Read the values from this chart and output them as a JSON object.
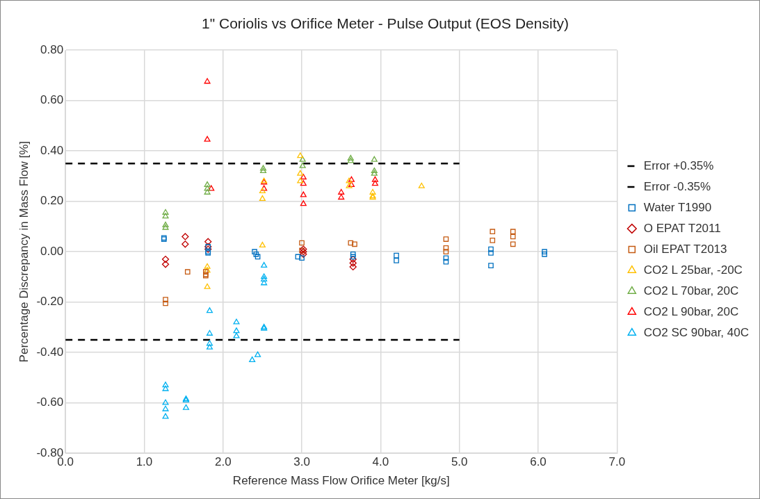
{
  "chart_data": {
    "type": "scatter",
    "title": "1\" Coriolis vs Orifice Meter - Pulse Output (EOS Density)",
    "xlabel": "Reference Mass Flow Orifice Meter [kg/s]",
    "ylabel": "Percentage Discrepancy in Mass Flow [%]",
    "xlim": [
      0,
      7
    ],
    "xticks": [
      {
        "value": 0,
        "label": "0.0"
      },
      {
        "value": 1,
        "label": "1.0"
      },
      {
        "value": 2,
        "label": "2.0"
      },
      {
        "value": 3,
        "label": "3.0"
      },
      {
        "value": 4,
        "label": "4.0"
      },
      {
        "value": 5,
        "label": "5.0"
      },
      {
        "value": 6,
        "label": "6.0"
      },
      {
        "value": 7,
        "label": "7.0"
      }
    ],
    "ylim": [
      -0.8,
      0.8
    ],
    "yticks": [
      {
        "value": -0.8,
        "label": "-0.80"
      },
      {
        "value": -0.6,
        "label": "-0.60"
      },
      {
        "value": -0.4,
        "label": "-0.40"
      },
      {
        "value": -0.2,
        "label": "-0.20"
      },
      {
        "value": 0,
        "label": "0.00"
      },
      {
        "value": 0.2,
        "label": "0.20"
      },
      {
        "value": 0.4,
        "label": "0.40"
      },
      {
        "value": 0.6,
        "label": "0.60"
      },
      {
        "value": 0.8,
        "label": "0.80"
      }
    ],
    "grid": true,
    "legend": "right",
    "series": [
      {
        "name": "Error +0.35%",
        "type": "line",
        "color": "#000000",
        "line_style": "dashed",
        "marker": "none",
        "x": [
          0,
          5
        ],
        "values": [
          0.35,
          0.35
        ]
      },
      {
        "name": "Error -0.35%",
        "type": "line",
        "color": "#000000",
        "line_style": "dashed",
        "marker": "none",
        "x": [
          0,
          5
        ],
        "values": [
          -0.35,
          -0.35
        ]
      },
      {
        "name": "Water T1990",
        "color": "#0070c0",
        "marker": "square",
        "x": [
          1.25,
          1.25,
          1.81,
          1.81,
          1.81,
          2.4,
          2.42,
          2.44,
          2.95,
          3.0,
          3.65,
          3.65,
          4.2,
          4.2,
          4.83,
          4.83,
          5.4,
          5.4,
          5.4,
          6.08,
          6.08
        ],
        "values": [
          0.055,
          0.05,
          0.02,
          0.0,
          -0.005,
          0.0,
          -0.01,
          -0.02,
          -0.02,
          -0.025,
          -0.01,
          -0.02,
          -0.015,
          -0.035,
          -0.025,
          -0.04,
          0.01,
          -0.005,
          -0.055,
          0.0,
          -0.01
        ]
      },
      {
        "name": "O EPAT T2011",
        "color": "#c00000",
        "marker": "diamond",
        "x": [
          1.27,
          1.27,
          1.52,
          1.52,
          1.81,
          1.81,
          1.81,
          3.02,
          3.02,
          3.02,
          3.65,
          3.65,
          3.65
        ],
        "values": [
          -0.03,
          -0.05,
          0.06,
          0.03,
          0.04,
          0.02,
          0.01,
          0.01,
          -0.01,
          0.0,
          -0.03,
          -0.045,
          -0.06
        ]
      },
      {
        "name": "Oil EPAT T2013",
        "color": "#c55a11",
        "marker": "square",
        "x": [
          1.27,
          1.27,
          1.55,
          1.78,
          1.78,
          1.78,
          3.0,
          3.0,
          3.62,
          3.67,
          4.83,
          4.83,
          4.83,
          5.42,
          5.42,
          5.68,
          5.68,
          5.68
        ],
        "values": [
          -0.19,
          -0.205,
          -0.08,
          -0.08,
          -0.09,
          -0.095,
          0.035,
          0.005,
          0.035,
          0.03,
          0.05,
          0.015,
          0.0,
          0.08,
          0.045,
          0.08,
          0.06,
          0.03
        ]
      },
      {
        "name": "CO2 L 25bar, -20C",
        "color": "#ffc000",
        "marker": "triangle",
        "x": [
          1.8,
          1.8,
          1.8,
          2.52,
          2.5,
          2.5,
          2.5,
          2.98,
          2.98,
          2.98,
          3.6,
          3.6,
          3.9,
          3.9,
          3.9,
          4.52
        ],
        "values": [
          -0.06,
          -0.075,
          -0.14,
          0.28,
          0.24,
          0.21,
          0.025,
          0.38,
          0.31,
          0.28,
          0.28,
          0.26,
          0.235,
          0.22,
          0.215,
          0.26
        ]
      },
      {
        "name": "CO2 L 70bar, 20C",
        "color": "#70ad47",
        "marker": "triangle",
        "x": [
          1.27,
          1.27,
          1.27,
          1.27,
          1.8,
          1.8,
          1.8,
          2.51,
          2.51,
          3.01,
          3.01,
          3.62,
          3.62,
          3.92,
          3.92,
          3.92
        ],
        "values": [
          0.155,
          0.14,
          0.105,
          0.095,
          0.265,
          0.25,
          0.235,
          0.33,
          0.32,
          0.365,
          0.34,
          0.37,
          0.36,
          0.365,
          0.32,
          0.31
        ]
      },
      {
        "name": "CO2 L 90bar, 20C",
        "color": "#ff0000",
        "marker": "triangle",
        "x": [
          1.8,
          1.8,
          1.85,
          2.52,
          2.52,
          3.02,
          3.02,
          3.02,
          3.02,
          3.5,
          3.5,
          3.63,
          3.63,
          3.93,
          3.93
        ],
        "values": [
          0.675,
          0.445,
          0.25,
          0.275,
          0.25,
          0.295,
          0.27,
          0.225,
          0.19,
          0.235,
          0.215,
          0.285,
          0.265,
          0.285,
          0.27
        ]
      },
      {
        "name": "CO2 SC 90bar, 40C",
        "color": "#00b0f0",
        "marker": "triangle",
        "x": [
          1.27,
          1.27,
          1.27,
          1.27,
          1.27,
          1.53,
          1.53,
          1.53,
          1.83,
          1.83,
          1.83,
          1.83,
          2.17,
          2.17,
          2.17,
          2.37,
          2.44,
          2.52,
          2.52,
          2.52,
          2.52,
          2.52,
          2.52
        ],
        "values": [
          -0.53,
          -0.545,
          -0.6,
          -0.625,
          -0.655,
          -0.585,
          -0.59,
          -0.62,
          -0.235,
          -0.325,
          -0.365,
          -0.38,
          -0.28,
          -0.315,
          -0.335,
          -0.43,
          -0.41,
          -0.055,
          -0.1,
          -0.11,
          -0.125,
          -0.3,
          -0.305
        ]
      }
    ]
  }
}
